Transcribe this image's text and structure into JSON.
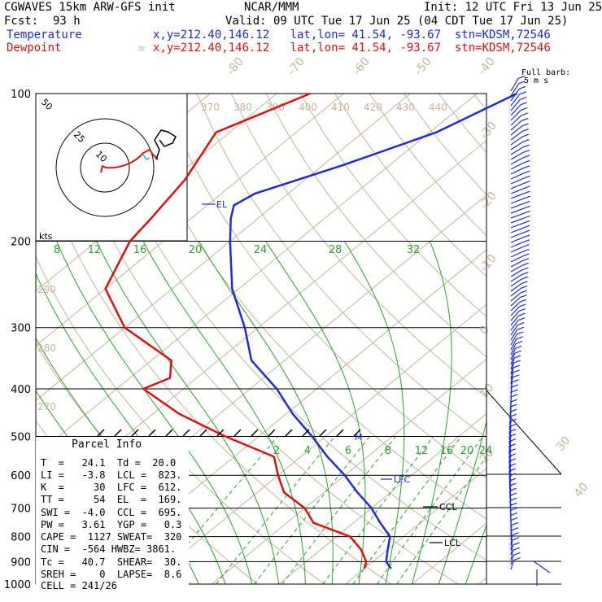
{
  "header": {
    "model": "CGWAVES 15km ARW-GFS init",
    "org": "NCAR/MMM",
    "init": "Init: 12 UTC Fri 13 Jun 25",
    "fcst_label": "Fcst:",
    "fcst_value": "93 h",
    "valid": "Valid: 09 UTC Tue 17 Jun 25 (04 CDT Tue 17 Jun 25)",
    "temp_label": "Temperature",
    "temp_loc": "x,y=212.40,146.12   lat,lon= 41.54, -93.67  stn=KDSM,72546",
    "dew_label": "Dewpoint",
    "dew_loc": "x,y=212.40,146.12   lat,lon= 41.54, -93.67  stn=KDSM,72546",
    "barb_note_1": "Full barb:",
    "barb_note_2": "5 m s"
  },
  "parcel_info": {
    "title": "Parcel Info",
    "rows": [
      "T  =   24.1  Td =  20.0",
      "LI =   -3.8  LCL =  823.",
      "K  =     30  LFC =  612.",
      "TT =     54  EL  =  169.",
      "SWI =  -4.0  CCL =  695.",
      "PW =   3.61  YGP =   0.3",
      "CAPE =  1127 SWEAT=  320",
      "CIN =  -564 HWBZ= 3861.",
      "Tc =   40.7  SHEAR=  30.",
      "SREH =    0  LAPSE=  8.6",
      "CELL = 241/26"
    ]
  },
  "labels": {
    "el": "EL",
    "lfc": "LFC",
    "ccl": "CCL",
    "lcl": "LCL",
    "m": "M",
    "kts": "kts"
  },
  "colors": {
    "temperature": "#1f2bd8",
    "dewpoint": "#e01010",
    "mixing_ratio": "#2aa52a",
    "isotherm": "#c8b49a",
    "isobar": "#000000"
  },
  "chart_data": {
    "type": "line",
    "title": "",
    "y_axis": "pressure (hPa), log scale",
    "x_axis": "temperature (C), skewed",
    "pressure_ticks": [
      100,
      200,
      300,
      400,
      500,
      600,
      700,
      800,
      900,
      1000
    ],
    "isotherm_labels": [
      -80,
      -70,
      -60,
      -50,
      -40,
      -30,
      -20,
      -10,
      0,
      10,
      20,
      30,
      40
    ],
    "theta_labels_top": [
      370,
      380,
      390,
      400,
      410,
      420,
      430,
      440
    ],
    "theta_labels_side": [
      290,
      280,
      270
    ],
    "mixing_ratio_labels_upper": [
      8,
      12,
      16,
      20,
      24,
      28,
      32
    ],
    "mixing_ratio_labels_lower": [
      2,
      4,
      6,
      8,
      12,
      16,
      20,
      24
    ],
    "series": [
      {
        "name": "Temperature",
        "points": [
          [
            100,
            -44
          ],
          [
            120,
            -49
          ],
          [
            140,
            -57
          ],
          [
            160,
            -65
          ],
          [
            169,
            -66
          ],
          [
            180,
            -64
          ],
          [
            200,
            -60
          ],
          [
            250,
            -51
          ],
          [
            300,
            -42
          ],
          [
            350,
            -35
          ],
          [
            400,
            -26
          ],
          [
            450,
            -19
          ],
          [
            500,
            -12
          ],
          [
            550,
            -6
          ],
          [
            600,
            0
          ],
          [
            650,
            5
          ],
          [
            700,
            10
          ],
          [
            750,
            14
          ],
          [
            800,
            18
          ],
          [
            850,
            20
          ],
          [
            900,
            22
          ],
          [
            930,
            24
          ]
        ]
      },
      {
        "name": "Dewpoint",
        "points": [
          [
            100,
            -75
          ],
          [
            120,
            -82
          ],
          [
            150,
            -78
          ],
          [
            180,
            -76
          ],
          [
            200,
            -75
          ],
          [
            250,
            -70
          ],
          [
            300,
            -60
          ],
          [
            350,
            -47
          ],
          [
            380,
            -44
          ],
          [
            400,
            -46
          ],
          [
            450,
            -36
          ],
          [
            500,
            -25
          ],
          [
            550,
            -14
          ],
          [
            600,
            -10
          ],
          [
            650,
            -6
          ],
          [
            700,
            0
          ],
          [
            750,
            4
          ],
          [
            800,
            12
          ],
          [
            850,
            16
          ],
          [
            900,
            19
          ],
          [
            930,
            20
          ]
        ]
      }
    ]
  }
}
